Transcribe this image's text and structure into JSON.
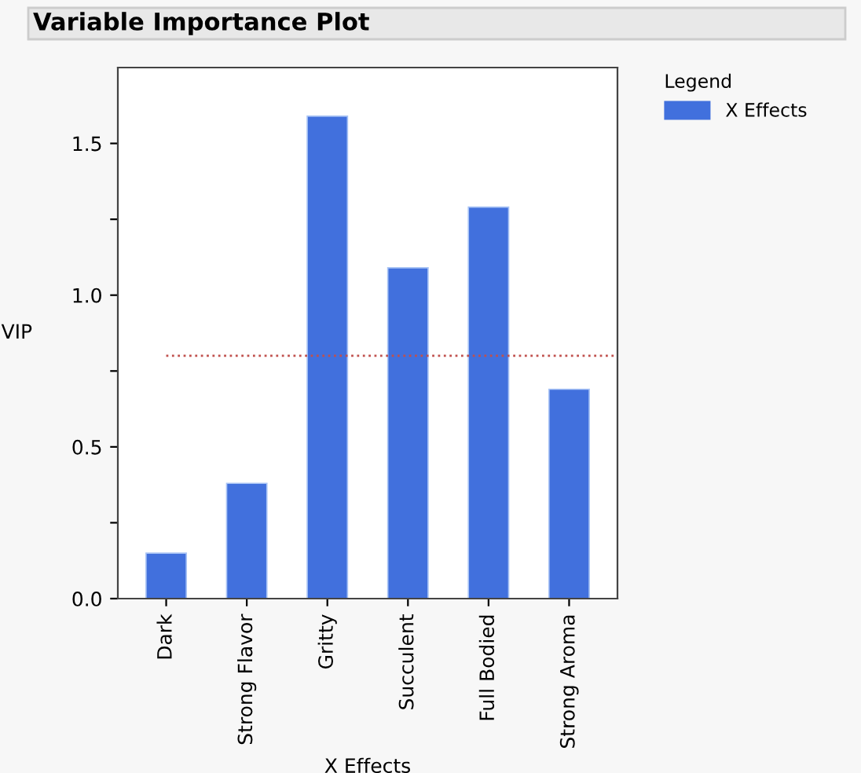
{
  "chart_data": {
    "type": "bar",
    "title": "Variable Importance Plot",
    "xlabel": "X Effects",
    "ylabel": "VIP",
    "legend_title": "Legend",
    "categories": [
      "Dark",
      "Strong Flavor",
      "Gritty",
      "Succulent",
      "Full Bodied",
      "Strong Aroma"
    ],
    "series": [
      {
        "name": "X Effects",
        "color": "#4170dd",
        "values": [
          0.15,
          0.38,
          1.59,
          1.09,
          1.29,
          0.69
        ]
      }
    ],
    "ylim": [
      0,
      1.75
    ],
    "yticks": [
      {
        "value": 0,
        "label": "0.0"
      },
      {
        "value": 0.25,
        "label": null
      },
      {
        "value": 0.5,
        "label": "0.5"
      },
      {
        "value": 0.75,
        "label": null
      },
      {
        "value": 1,
        "label": "1.0"
      },
      {
        "value": 1.25,
        "label": null
      },
      {
        "value": 1.5,
        "label": "1.5"
      }
    ],
    "ref_lines": [
      {
        "axis": "y",
        "value": 0.8,
        "label": null,
        "color": "#c0504d",
        "line_style": "dotted"
      }
    ],
    "legend": "top right",
    "grid": false
  }
}
